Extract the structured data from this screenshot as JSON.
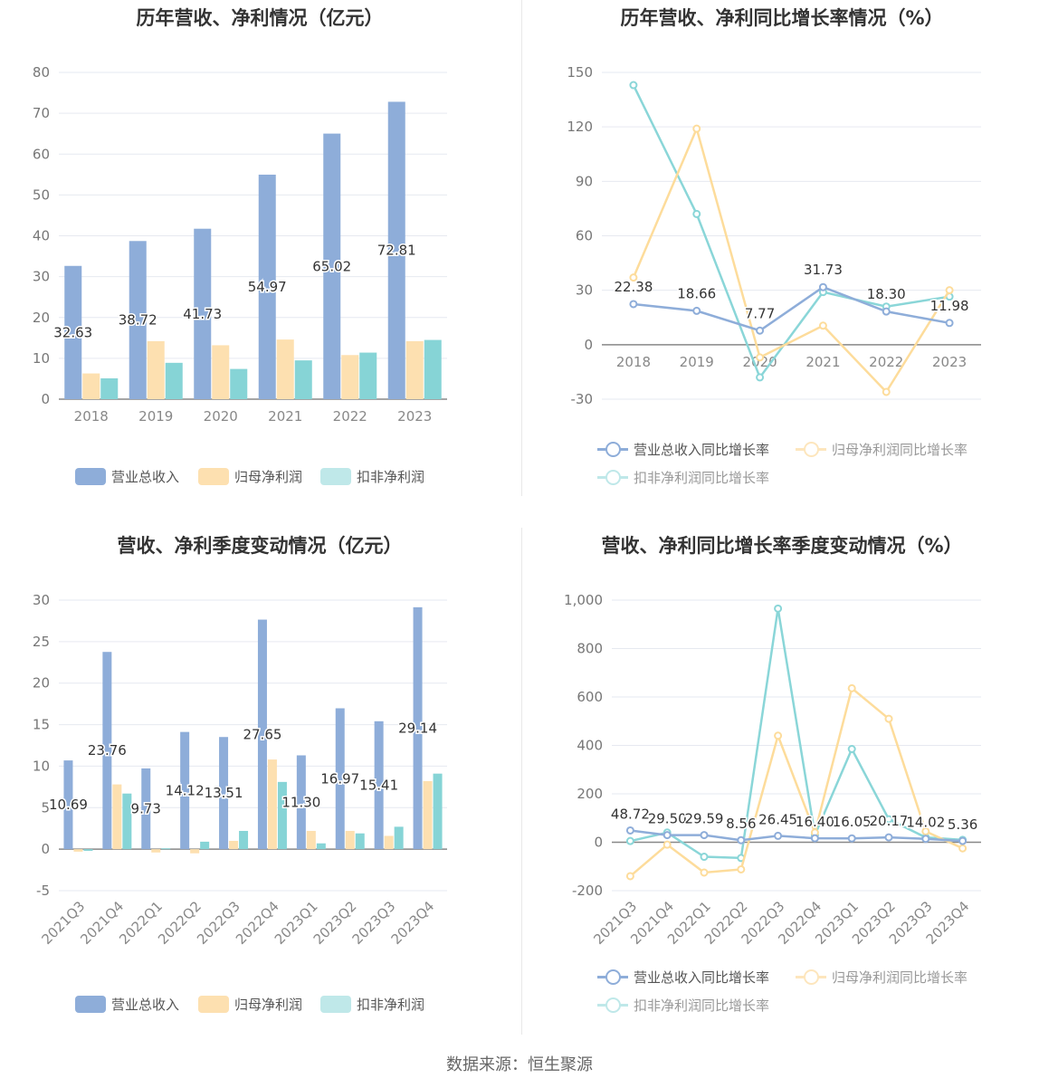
{
  "colors": {
    "revenue": "#8eadd9",
    "net_profit": "#fde0b0",
    "deducted": "#86d4d6",
    "line_revenue": "#8eadd9",
    "line_net": "#fddc9b",
    "line_deducted": "#8ad6d8"
  },
  "source": "数据来源：恒生聚源",
  "chart_data": [
    {
      "id": "annual_values",
      "type": "bar",
      "title": "历年营收、净利情况（亿元）",
      "categories": [
        "2018",
        "2019",
        "2020",
        "2021",
        "2022",
        "2023"
      ],
      "ylim": [
        0,
        80
      ],
      "yticks": [
        0,
        10,
        20,
        30,
        40,
        50,
        60,
        70,
        80
      ],
      "series": [
        {
          "name": "营业总收入",
          "values": [
            32.63,
            38.72,
            41.73,
            54.97,
            65.02,
            72.81
          ],
          "labels": [
            "32.63",
            "38.72",
            "41.73",
            "54.97",
            "65.02",
            "72.81"
          ]
        },
        {
          "name": "归母净利润",
          "values": [
            6.3,
            14.2,
            13.2,
            14.6,
            10.8,
            14.2
          ]
        },
        {
          "name": "扣非净利润",
          "values": [
            5.1,
            8.9,
            7.4,
            9.5,
            11.4,
            14.5
          ]
        }
      ]
    },
    {
      "id": "annual_growth",
      "type": "line",
      "title": "历年营收、净利同比增长率情况（%）",
      "categories": [
        "2018",
        "2019",
        "2020",
        "2021",
        "2022",
        "2023"
      ],
      "ylim": [
        -30,
        150
      ],
      "yticks": [
        -30,
        0,
        30,
        60,
        90,
        120,
        150
      ],
      "series": [
        {
          "name": "营业总收入同比增长率",
          "values": [
            22.38,
            18.66,
            7.77,
            31.73,
            18.3,
            11.98
          ],
          "labels": [
            "22.38",
            "18.66",
            "7.77",
            "31.73",
            "18.30",
            "11.98"
          ]
        },
        {
          "name": "归母净利润同比增长率",
          "values": [
            37,
            119,
            -7,
            10.5,
            -26,
            30
          ]
        },
        {
          "name": "扣非净利润同比增长率",
          "values": [
            143,
            72,
            -18,
            29,
            21,
            26.5
          ]
        }
      ]
    },
    {
      "id": "quarterly_values",
      "type": "bar",
      "title": "营收、净利季度变动情况（亿元）",
      "categories": [
        "2021Q3",
        "2021Q4",
        "2022Q1",
        "2022Q2",
        "2022Q3",
        "2022Q4",
        "2023Q1",
        "2023Q2",
        "2023Q3",
        "2023Q4"
      ],
      "ylim": [
        -5,
        30
      ],
      "yticks": [
        -5,
        0,
        5,
        10,
        15,
        20,
        25,
        30
      ],
      "series": [
        {
          "name": "营业总收入",
          "values": [
            10.69,
            23.76,
            9.73,
            14.12,
            13.51,
            27.65,
            11.3,
            16.97,
            15.41,
            29.14
          ],
          "labels": [
            "10.69",
            "23.76",
            "9.73",
            "14.12",
            "13.51",
            "27.65",
            "11.30",
            "16.97",
            "15.41",
            "29.14"
          ]
        },
        {
          "name": "归母净利润",
          "values": [
            -0.3,
            7.8,
            -0.4,
            -0.5,
            1.0,
            10.8,
            2.2,
            2.2,
            1.6,
            8.2
          ]
        },
        {
          "name": "扣非净利润",
          "values": [
            -0.2,
            6.7,
            0.1,
            0.9,
            2.2,
            8.1,
            0.7,
            1.9,
            2.7,
            9.1
          ]
        }
      ]
    },
    {
      "id": "quarterly_growth",
      "type": "line",
      "title": "营收、净利同比增长率季度变动情况（%）",
      "categories": [
        "2021Q3",
        "2021Q4",
        "2022Q1",
        "2022Q2",
        "2022Q3",
        "2022Q4",
        "2023Q1",
        "2023Q2",
        "2023Q3",
        "2023Q4"
      ],
      "ylim": [
        -200,
        1000
      ],
      "yticks": [
        -200,
        0,
        200,
        400,
        600,
        800,
        1000
      ],
      "ytick_labels": [
        "-200",
        "0",
        "200",
        "400",
        "600",
        "800",
        "1,000"
      ],
      "series": [
        {
          "name": "营业总收入同比增长率",
          "values": [
            48.72,
            29.5,
            29.59,
            8.56,
            26.45,
            16.4,
            16.05,
            20.17,
            14.02,
            5.36
          ],
          "labels": [
            "48.72",
            "29.50",
            "29.59",
            "8.56",
            "26.45",
            "16.40",
            "16.05",
            "20.17",
            "14.02",
            "5.36"
          ]
        },
        {
          "name": "归母净利润同比增长率",
          "values": [
            -140,
            -10,
            -125,
            -112,
            440,
            40,
            636,
            510,
            45,
            -25
          ]
        },
        {
          "name": "扣非净利润同比增长率",
          "values": [
            5,
            40,
            -60,
            -65,
            965,
            30,
            385,
            95,
            20,
            10
          ]
        }
      ]
    }
  ]
}
